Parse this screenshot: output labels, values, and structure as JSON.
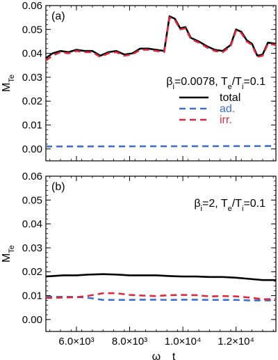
{
  "chart_data": [
    {
      "type": "line",
      "panel_label": "(a)",
      "ylabel": "M_Te",
      "xlabel": "",
      "xlim": [
        4850,
        13500
      ],
      "ylim": [
        -0.005,
        0.06
      ],
      "yticks": [
        0.0,
        0.01,
        0.02,
        0.03,
        0.04,
        0.05,
        0.06
      ],
      "ytick_labels": [
        "0.00",
        "0.01",
        "0.02",
        "0.03",
        "0.04",
        "0.05",
        "0.06"
      ],
      "xticks": [
        6000,
        8000,
        10000,
        12000
      ],
      "xtick_labels": [],
      "annotation": "β_i=0.0078, T_e/T_i=0.1",
      "legend": {
        "position": "right",
        "entries": [
          "total",
          "ad.",
          "irr."
        ]
      },
      "series": [
        {
          "name": "total",
          "color": "#000000",
          "dash": "solid",
          "x": [
            4850,
            5100,
            5400,
            5700,
            6000,
            6300,
            6600,
            6900,
            7200,
            7500,
            7800,
            8100,
            8400,
            8700,
            9000,
            9300,
            9500,
            9700,
            9900,
            10100,
            10300,
            10600,
            10900,
            11200,
            11500,
            11800,
            12000,
            12200,
            12400,
            12600,
            12800,
            13000,
            13200,
            13500
          ],
          "y": [
            0.038,
            0.04,
            0.041,
            0.0405,
            0.0415,
            0.041,
            0.041,
            0.039,
            0.0405,
            0.041,
            0.0395,
            0.04,
            0.042,
            0.042,
            0.0415,
            0.041,
            0.0555,
            0.0545,
            0.0505,
            0.051,
            0.0465,
            0.045,
            0.043,
            0.0415,
            0.041,
            0.0435,
            0.05,
            0.049,
            0.0455,
            0.044,
            0.039,
            0.0395,
            0.0445,
            0.044
          ]
        },
        {
          "name": "ad.",
          "color": "#3b6fd6",
          "dash": "dashed",
          "x": [
            4850,
            13500
          ],
          "y": [
            0.001,
            0.0012
          ]
        },
        {
          "name": "irr.",
          "color": "#e0283c",
          "dash": "dashed",
          "x": [
            4850,
            5100,
            5400,
            5700,
            6000,
            6300,
            6600,
            6900,
            7200,
            7500,
            7800,
            8100,
            8400,
            8700,
            9000,
            9300,
            9500,
            9700,
            9900,
            10100,
            10300,
            10600,
            10900,
            11200,
            11500,
            11800,
            12000,
            12200,
            12400,
            12600,
            12800,
            13000,
            13200,
            13500
          ],
          "y": [
            0.037,
            0.039,
            0.0405,
            0.04,
            0.041,
            0.0405,
            0.0405,
            0.0385,
            0.04,
            0.0405,
            0.039,
            0.0395,
            0.0415,
            0.0415,
            0.041,
            0.0405,
            0.055,
            0.054,
            0.05,
            0.0505,
            0.046,
            0.0445,
            0.0425,
            0.041,
            0.0405,
            0.043,
            0.0495,
            0.0485,
            0.045,
            0.0435,
            0.0385,
            0.039,
            0.044,
            0.0435
          ]
        }
      ]
    },
    {
      "type": "line",
      "panel_label": "(b)",
      "ylabel": "M_Te",
      "xlabel": "ω_pe t",
      "xlim": [
        4850,
        13500
      ],
      "ylim": [
        -0.005,
        0.06
      ],
      "yticks": [
        0.0,
        0.01,
        0.02,
        0.03,
        0.04,
        0.05,
        0.06
      ],
      "ytick_labels": [
        "0.00",
        "0.01",
        "0.02",
        "0.03",
        "0.04",
        "0.05",
        "0.06"
      ],
      "xticks": [
        6000,
        8000,
        10000,
        12000
      ],
      "xtick_labels": [
        "6.0×10³",
        "8.0×10³",
        "1.0×10⁴",
        "1.2×10⁴"
      ],
      "annotation": "β_i=2, T_e/T_i=0.1",
      "series": [
        {
          "name": "total",
          "color": "#000000",
          "dash": "solid",
          "x": [
            4850,
            5500,
            6000,
            6500,
            7000,
            7500,
            8000,
            8500,
            9000,
            9500,
            10000,
            10500,
            11000,
            11500,
            12000,
            12500,
            13000,
            13500
          ],
          "y": [
            0.018,
            0.0185,
            0.0185,
            0.0188,
            0.019,
            0.0188,
            0.0185,
            0.0185,
            0.0185,
            0.0182,
            0.018,
            0.018,
            0.0178,
            0.0178,
            0.0175,
            0.017,
            0.0165,
            0.0165
          ]
        },
        {
          "name": "ad.",
          "color": "#3b6fd6",
          "dash": "dashed",
          "x": [
            4850,
            5500,
            6000,
            6500,
            7000,
            7500,
            8000,
            8500,
            9000,
            9500,
            10000,
            10500,
            11000,
            11500,
            12000,
            12500,
            13000,
            13500
          ],
          "y": [
            0.0095,
            0.0095,
            0.0095,
            0.009,
            0.0082,
            0.0082,
            0.0082,
            0.0083,
            0.0083,
            0.0082,
            0.0083,
            0.0083,
            0.0082,
            0.0082,
            0.0082,
            0.008,
            0.008,
            0.008
          ]
        },
        {
          "name": "irr.",
          "color": "#e0283c",
          "dash": "dashed",
          "x": [
            4850,
            5500,
            6000,
            6500,
            7000,
            7500,
            8000,
            8500,
            9000,
            9500,
            10000,
            10500,
            11000,
            11500,
            12000,
            12500,
            13000,
            13500
          ],
          "y": [
            0.009,
            0.0092,
            0.0093,
            0.01,
            0.011,
            0.011,
            0.0103,
            0.01,
            0.0098,
            0.0102,
            0.0103,
            0.0102,
            0.0097,
            0.0098,
            0.0097,
            0.0092,
            0.0085,
            0.0085
          ]
        }
      ]
    }
  ]
}
